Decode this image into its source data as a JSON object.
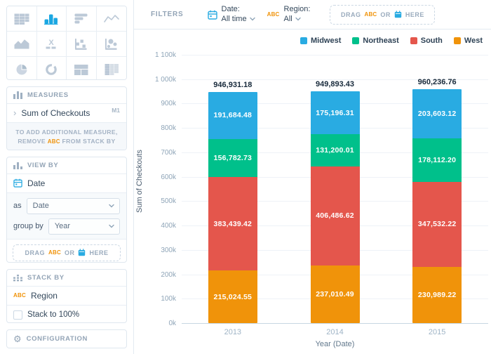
{
  "filters": {
    "label": "FILTERS",
    "items": [
      {
        "icon": "calendar",
        "name": "Date:",
        "value": "All time"
      },
      {
        "icon": "abc",
        "abc": "ABC",
        "name": "Region:",
        "value": "All"
      }
    ]
  },
  "dropzone_text": {
    "drag": "DRAG",
    "abc": "ABC",
    "or": "OR",
    "here": "HERE"
  },
  "sidebar": {
    "chart_picker": {
      "types": [
        "table",
        "column-bars",
        "row-bars",
        "line",
        "area",
        "x-axis",
        "scatter",
        "bubble",
        "pie",
        "donut",
        "treemap",
        "pivot-table"
      ],
      "selected": "column-bars"
    },
    "measures": {
      "title": "MEASURES",
      "row": {
        "label": "Sum of Checkouts",
        "badge": "M1"
      },
      "hint_line1": "TO ADD ADDITIONAL MEASURE,",
      "hint_line2_pre": "REMOVE",
      "hint_abc": "ABC",
      "hint_line2_post": "FROM STACK BY"
    },
    "view_by": {
      "title": "VIEW BY",
      "field": "Date",
      "as_label": "as",
      "as_value": "Date",
      "group_by_label": "group by",
      "group_by_value": "Year"
    },
    "stack_by": {
      "title": "STACK BY",
      "field_abc": "ABC",
      "field": "Region",
      "checkbox_label": "Stack to 100%",
      "checkbox_checked": false
    },
    "configuration": {
      "title": "CONFIGURATION"
    }
  },
  "chart_data": {
    "type": "bar",
    "stacked": true,
    "categories": [
      "2013",
      "2014",
      "2015"
    ],
    "series": [
      {
        "name": "Midwest",
        "color": "#29abe2",
        "values": [
          191684.48,
          175196.31,
          203603.12
        ],
        "labels": [
          "191,684.48",
          "175,196.31",
          "203,603.12"
        ]
      },
      {
        "name": "Northeast",
        "color": "#00c08b",
        "values": [
          156782.73,
          131200.01,
          178112.2
        ],
        "labels": [
          "156,782.73",
          "131,200.01",
          "178,112.20"
        ]
      },
      {
        "name": "South",
        "color": "#e4564c",
        "values": [
          383439.42,
          406486.62,
          347532.22
        ],
        "labels": [
          "383,439.42",
          "406,486.62",
          "347,532.22"
        ]
      },
      {
        "name": "West",
        "color": "#f0930a",
        "values": [
          215024.55,
          237010.49,
          230989.22
        ],
        "labels": [
          "215,024.55",
          "237,010.49",
          "230,989.22"
        ]
      }
    ],
    "totals": {
      "values": [
        946931.18,
        949893.43,
        960236.76
      ],
      "labels": [
        "946,931.18",
        "949,893.43",
        "960,236.76"
      ]
    },
    "xlabel": "Year (Date)",
    "ylabel": "Sum of Checkouts",
    "ylim": [
      0,
      1100000
    ],
    "ytick_step": 100000,
    "ytick_labels": [
      "0k",
      "100k",
      "200k",
      "300k",
      "400k",
      "500k",
      "600k",
      "700k",
      "800k",
      "900k",
      "1 000k",
      "1 100k"
    ],
    "legend_position": "top-right",
    "grid": true
  }
}
